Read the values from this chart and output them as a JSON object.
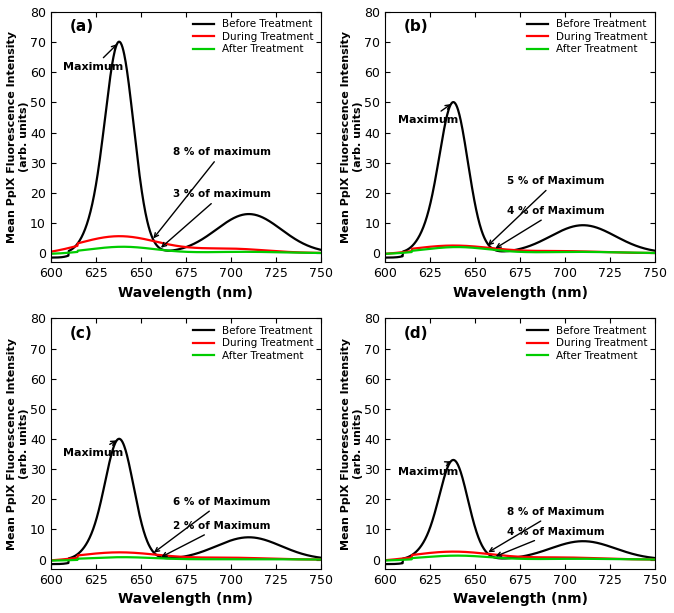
{
  "panels": [
    {
      "label": "(a)",
      "peak_black": 70,
      "anno1_text": "8 % of maximum",
      "anno2_text": "3 % of maximum",
      "red_peak": 5.6,
      "green_peak": 2.1,
      "red_sigma": 22,
      "green_sigma": 18
    },
    {
      "label": "(b)",
      "peak_black": 50,
      "anno1_text": "5 % of Maximum",
      "anno2_text": "4 % of Maximum",
      "red_peak": 2.5,
      "green_peak": 2.0,
      "red_sigma": 22,
      "green_sigma": 18
    },
    {
      "label": "(c)",
      "peak_black": 40,
      "anno1_text": "6 % of Maximum",
      "anno2_text": "2 % of Maximum",
      "red_peak": 2.4,
      "green_peak": 0.8,
      "red_sigma": 22,
      "green_sigma": 18
    },
    {
      "label": "(d)",
      "peak_black": 33,
      "anno1_text": "8 % of Maximum",
      "anno2_text": "4 % of Maximum",
      "red_peak": 2.64,
      "green_peak": 1.32,
      "red_sigma": 22,
      "green_sigma": 18
    }
  ],
  "xmin": 600,
  "xmax": 750,
  "ymin": -3,
  "ymax": 80,
  "yticks": [
    0,
    10,
    20,
    30,
    40,
    50,
    60,
    70,
    80
  ],
  "xticks": [
    600,
    625,
    650,
    675,
    700,
    725,
    750
  ],
  "xlabel": "Wavelength (nm)",
  "ylabel": "Mean PpIX Fluorescence Intensity\n(arb. units)",
  "legend_labels": [
    "Before Treatment",
    "During Treatment",
    "After Treatment"
  ],
  "legend_colors": [
    "#000000",
    "#ff0000",
    "#00cc00"
  ],
  "background_color": "#ffffff",
  "line_width": 1.6,
  "black_peak_wl": 638,
  "black_peak2_wl": 710,
  "black_sigma1": 8,
  "black_sigma2": 18,
  "black_shoulder_wl": 622,
  "black_shoulder_sigma": 6,
  "red_peak_wl": 638,
  "green_peak_wl": 640
}
